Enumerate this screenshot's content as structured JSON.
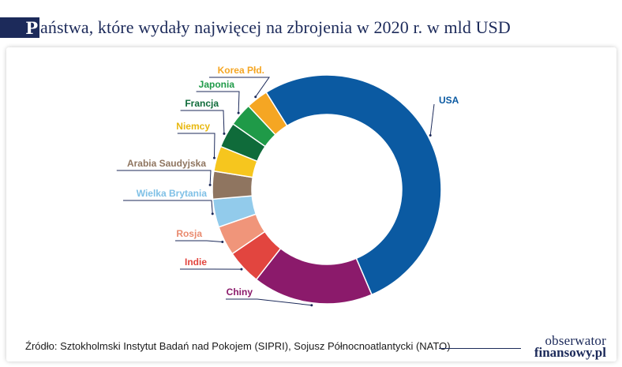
{
  "title": {
    "initial": "P",
    "text": "aństwa, które wydały najwięcej na zbrojenia w 2020 r. w mld USD"
  },
  "source": "Źródło: Sztokholmski Instytut Badań nad Pokojem (SIPRI), Sojusz Północnoatlantycki (NATO)",
  "logo": {
    "line1": "obserwator",
    "line2": "finansowy.pl"
  },
  "chart_data": {
    "type": "pie",
    "variant": "donut",
    "title": "Państwa, które wydały najwięcej na zbrojenia w 2020 r. w mld USD",
    "unit": "mld USD",
    "categories": [
      "USA",
      "Chiny",
      "Indie",
      "Rosja",
      "Wielka Brytania",
      "Arabia Saudyjska",
      "Niemcy",
      "Francja",
      "Japonia",
      "Korea Płd."
    ],
    "values": [
      778,
      252,
      73,
      62,
      59,
      58,
      53,
      53,
      49,
      46
    ],
    "colors": [
      "#0b5aa2",
      "#8b1a6b",
      "#e2453f",
      "#f0957a",
      "#92cbeb",
      "#8f7560",
      "#f6c61e",
      "#0f6b3a",
      "#1f9a48",
      "#f5a623"
    ],
    "label_colors": [
      "#0b5aa2",
      "#8b1a6b",
      "#e2453f",
      "#e98a6e",
      "#7fc0e6",
      "#8f7560",
      "#e8b80f",
      "#0f6b3a",
      "#1f9a48",
      "#f5a623"
    ],
    "legend": "none"
  }
}
